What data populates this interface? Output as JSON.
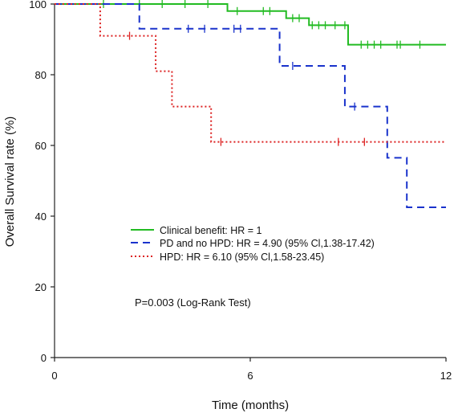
{
  "chart_data": {
    "type": "line",
    "subtype": "kaplan-meier",
    "title": "",
    "xlabel": "Time (months)",
    "ylabel": "Overall Survival rate (%)",
    "xlim": [
      0,
      12
    ],
    "ylim": [
      0,
      100
    ],
    "xticks": [
      0,
      6,
      12
    ],
    "yticks": [
      0,
      20,
      40,
      60,
      80,
      100
    ],
    "grid": false,
    "legend_position": "lower-left",
    "annotation": "P=0.003 (Log-Rank Test)",
    "series": [
      {
        "name": "Clinical benefit: HR = 1",
        "color": "#22bb22",
        "dash": "solid",
        "steps": [
          [
            0,
            100
          ],
          [
            5.3,
            98
          ],
          [
            7.1,
            96
          ],
          [
            7.8,
            94
          ],
          [
            9,
            88.5
          ],
          [
            12,
            88.5
          ]
        ],
        "censor_times": [
          1.5,
          2.6,
          3.3,
          4.0,
          4.7,
          5.6,
          6.4,
          6.6,
          7.3,
          7.5,
          7.9,
          8.1,
          8.3,
          8.6,
          8.9,
          9.4,
          9.6,
          9.8,
          10,
          10.5,
          10.6,
          11.2
        ]
      },
      {
        "name": "PD and no HPD: HR = 4.90 (95% Cl,1.38-17.42)",
        "color": "#1a33cc",
        "dash": "dashed",
        "steps": [
          [
            0,
            100
          ],
          [
            2.6,
            93
          ],
          [
            6.9,
            82.5
          ],
          [
            8.9,
            71
          ],
          [
            10.2,
            56.5
          ],
          [
            10.8,
            42.5
          ],
          [
            12,
            42.5
          ]
        ],
        "censor_times": [
          4.1,
          4.6,
          5.5,
          5.7,
          7.3,
          9.2
        ]
      },
      {
        "name": "HPD: HR = 6.10 (95% Cl,1.58-23.45)",
        "color": "#dd2222",
        "dash": "dotted",
        "steps": [
          [
            0,
            100
          ],
          [
            1.4,
            91
          ],
          [
            3.1,
            81
          ],
          [
            3.6,
            71
          ],
          [
            4.8,
            61
          ],
          [
            12,
            61
          ]
        ],
        "censor_times": [
          2.3,
          5.1,
          8.7,
          9.5
        ]
      }
    ]
  }
}
